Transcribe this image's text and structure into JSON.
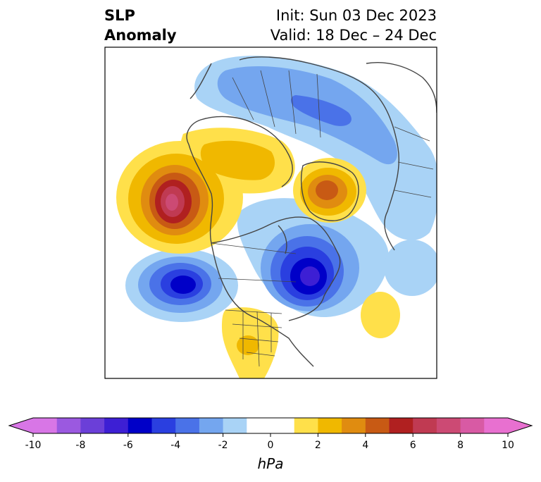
{
  "title": {
    "left_line1": "SLP",
    "left_line2": "Anomaly",
    "right_line1": "Init: Sun 03 Dec 2023",
    "right_line2": "Valid: 18 Dec – 24 Dec"
  },
  "colorbar": {
    "unit": "hPa",
    "ticks": [
      "-10",
      "-8",
      "-6",
      "-4",
      "-2",
      "0",
      "2",
      "4",
      "6",
      "8",
      "10"
    ],
    "colors": [
      "#d876e6",
      "#9b59e0",
      "#6b3fd8",
      "#3d1fd4",
      "#0000c8",
      "#2a3fe0",
      "#4a72e8",
      "#74a6ef",
      "#a9d3f6",
      "#ffffff",
      "#ffffff",
      "#ffe04a",
      "#f0b800",
      "#e08c10",
      "#c85a14",
      "#b02020",
      "#c03a52",
      "#cc4a74",
      "#d85aa4",
      "#e870d0"
    ],
    "under_color": "#d876e6",
    "over_color": "#e870d0"
  },
  "map_colors": {
    "neg1": "#a9d3f6",
    "neg2": "#74a6ef",
    "neg3": "#4a72e8",
    "neg4": "#2a3fe0",
    "neg5": "#0000c8",
    "neg6": "#3d1fd4",
    "pos1": "#ffe04a",
    "pos2": "#f0b800",
    "pos3": "#e08c10",
    "pos4": "#c85a14",
    "pos5": "#b02020",
    "pos6": "#c03a52",
    "pos7": "#cc4a74",
    "coast": "#444444"
  }
}
